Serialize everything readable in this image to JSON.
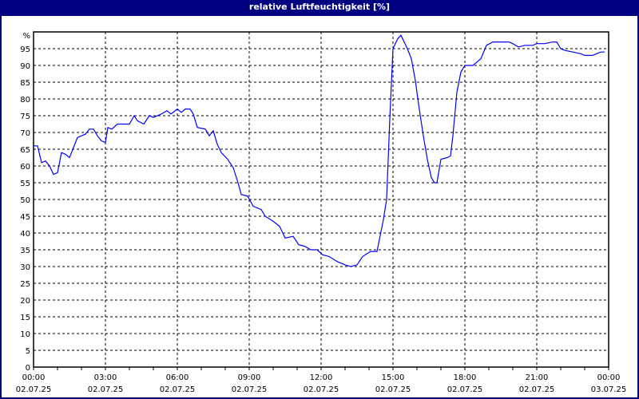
{
  "window": {
    "title": "relative Luftfeuchtigkeit [%]"
  },
  "chart_data": {
    "type": "line",
    "title": "relative Luftfeuchtigkeit [%]",
    "ylabel": "%",
    "ylim": [
      0,
      100
    ],
    "yticks": [
      0,
      5,
      10,
      15,
      20,
      25,
      30,
      35,
      40,
      45,
      50,
      55,
      60,
      65,
      70,
      75,
      80,
      85,
      90,
      95
    ],
    "xticks": [
      {
        "time": "00:00",
        "date": "02.07.25"
      },
      {
        "time": "03:00",
        "date": "02.07.25"
      },
      {
        "time": "06:00",
        "date": "02.07.25"
      },
      {
        "time": "09:00",
        "date": "02.07.25"
      },
      {
        "time": "12:00",
        "date": "02.07.25"
      },
      {
        "time": "15:00",
        "date": "02.07.25"
      },
      {
        "time": "18:00",
        "date": "02.07.25"
      },
      {
        "time": "21:00",
        "date": "02.07.25"
      },
      {
        "time": "00:00",
        "date": "03.07.25"
      }
    ],
    "grid": true,
    "line_color": "#0000ff",
    "title_bar_color": "#000080",
    "series": [
      {
        "x": [
          "00:00",
          "00:10",
          "00:20",
          "00:30",
          "00:40",
          "00:50",
          "01:00",
          "01:10",
          "01:20",
          "01:30",
          "01:40",
          "01:50",
          "02:00",
          "02:10",
          "02:20",
          "02:30",
          "02:40",
          "02:50",
          "03:00",
          "03:06",
          "03:16",
          "03:30",
          "03:50",
          "04:00",
          "04:12",
          "04:20",
          "04:36",
          "04:50",
          "05:00",
          "05:20",
          "05:34",
          "05:44",
          "06:00",
          "06:10",
          "06:20",
          "06:32",
          "06:40",
          "06:50",
          "07:10",
          "07:20",
          "07:30",
          "07:40",
          "07:50",
          "08:06",
          "08:20",
          "08:32",
          "08:40",
          "08:56",
          "09:10",
          "09:30",
          "09:40",
          "10:00",
          "10:16",
          "10:30",
          "10:50",
          "11:04",
          "11:20",
          "11:34",
          "11:50",
          "12:04",
          "12:20",
          "12:40",
          "13:00",
          "13:14",
          "13:30",
          "13:44",
          "14:04",
          "14:20",
          "14:36",
          "14:44",
          "14:52",
          "15:00",
          "15:12",
          "15:20",
          "15:36",
          "15:46",
          "15:56",
          "16:04",
          "16:16",
          "16:26",
          "16:36",
          "16:44",
          "16:50",
          "17:00",
          "17:16",
          "17:24",
          "17:30",
          "17:40",
          "17:50",
          "18:00",
          "18:20",
          "18:30",
          "18:40",
          "18:54",
          "19:10",
          "19:30",
          "19:50",
          "20:00",
          "20:14",
          "20:30",
          "20:50",
          "21:00",
          "21:20",
          "21:40",
          "21:50",
          "22:00",
          "22:10",
          "22:30",
          "22:50",
          "23:00",
          "23:20",
          "23:30",
          "23:40",
          "23:50"
        ],
        "y": [
          66,
          66,
          61,
          61.5,
          60,
          57.5,
          58,
          64,
          63.5,
          62.5,
          65.5,
          68.5,
          69,
          69.5,
          71,
          71,
          69,
          67.5,
          67,
          71.5,
          71,
          72.5,
          72.5,
          72.5,
          75,
          73.5,
          72.5,
          75,
          74.5,
          75.5,
          76.5,
          75.5,
          77,
          76,
          77,
          77,
          75.5,
          71.5,
          71,
          69,
          70.5,
          66.5,
          64,
          62,
          59.5,
          55,
          51.5,
          51,
          48,
          47,
          45,
          43.5,
          42,
          38.5,
          39,
          36.5,
          36,
          35,
          35,
          33.5,
          33,
          31.5,
          30.5,
          30,
          30.5,
          33,
          34.5,
          34.5,
          44,
          50,
          74,
          95,
          98,
          99,
          95,
          92,
          85.5,
          78.5,
          69,
          62,
          56.5,
          55,
          55,
          62,
          62.5,
          63,
          69,
          82,
          88,
          90,
          90,
          91,
          92,
          96,
          97,
          97,
          97,
          96.5,
          95.5,
          96,
          96,
          96.5,
          96.5,
          97,
          97,
          95,
          94.5,
          94,
          93.5,
          93,
          93,
          93.5,
          94,
          94
        ]
      }
    ]
  }
}
